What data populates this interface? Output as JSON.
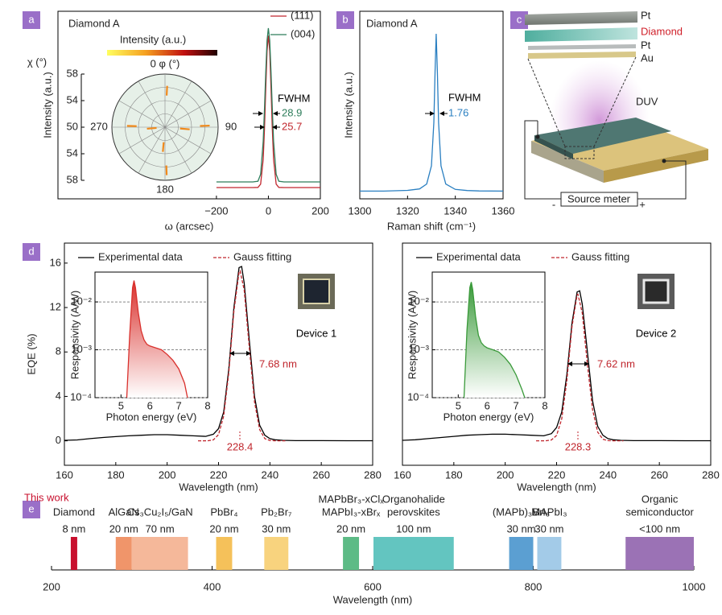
{
  "panel_labels": [
    "a",
    "b",
    "c",
    "d",
    "e"
  ],
  "diagram": {
    "layers": [
      "Pt",
      "Diamond",
      "Pt",
      "Au"
    ],
    "light": "DUV",
    "instrument": "Source meter",
    "terminals": [
      "-",
      "+"
    ]
  },
  "chart_data": [
    {
      "type": "line",
      "title": "Diamond A",
      "xlabel": "ω (arcsec)",
      "ylabel": "Intensity (a.u.)",
      "xlim": [
        -810,
        200
      ],
      "ylim": [
        0,
        1
      ],
      "xticks": [
        {
          "value": -200,
          "label": "−200"
        },
        0,
        200
      ],
      "legend": "upper right",
      "x": [
        -200,
        -150,
        -100,
        -60,
        -40,
        -30,
        -20,
        -15,
        -10,
        -5,
        0,
        5,
        10,
        15,
        20,
        30,
        40,
        60,
        100,
        150,
        200
      ],
      "series": [
        {
          "name": "(111)",
          "color": "#c0262d",
          "values": [
            0.06,
            0.06,
            0.06,
            0.06,
            0.061,
            0.078,
            0.211,
            0.374,
            0.591,
            0.789,
            0.87,
            0.789,
            0.591,
            0.374,
            0.211,
            0.078,
            0.061,
            0.06,
            0.06,
            0.06,
            0.06
          ]
        },
        {
          "name": "(004)",
          "color": "#2e7d5b",
          "values": [
            0.09,
            0.09,
            0.09,
            0.09,
            0.094,
            0.131,
            0.307,
            0.479,
            0.678,
            0.844,
            0.91,
            0.844,
            0.678,
            0.479,
            0.307,
            0.131,
            0.094,
            0.09,
            0.09,
            0.09,
            0.09
          ]
        }
      ],
      "annotations": [
        {
          "text": "FWHM",
          "color": "#000000"
        },
        {
          "text": "28.9",
          "color": "#2e7d5b"
        },
        {
          "text": "25.7",
          "color": "#c0262d"
        }
      ],
      "inset": {
        "type": "polar",
        "colorbar_label": "Intensity (a.u.)",
        "angle_label": "0 φ (°)",
        "angle_ticks": [
          90,
          180,
          270
        ],
        "radial_label": "χ (°)",
        "radial_ticks": [
          58,
          54,
          50,
          54,
          58
        ],
        "rlim": [
          50,
          58
        ],
        "color": "#f08a1c",
        "spots": {
          "phi": [
            3,
            88,
            178,
            272,
            265,
            95,
            185
          ],
          "chi": [
            55.5,
            56,
            56.5,
            55,
            52,
            53,
            53
          ]
        }
      }
    },
    {
      "type": "line",
      "title": "Diamond A",
      "xlabel": "Raman shift (cm⁻¹)",
      "ylabel": "Intensity (a.u.)",
      "xlim": [
        1300,
        1360
      ],
      "ylim": [
        0,
        1
      ],
      "xticks": [
        1300,
        1320,
        1340,
        1360
      ],
      "x": [
        1300,
        1310,
        1320,
        1325,
        1328,
        1330,
        1331,
        1331.5,
        1332,
        1332.5,
        1333,
        1334,
        1336,
        1340,
        1345,
        1350,
        1360
      ],
      "series": [
        {
          "color": "#2a7fc1",
          "values": [
            0.041,
            0.041,
            0.045,
            0.053,
            0.079,
            0.176,
            0.406,
            0.675,
            0.88,
            0.675,
            0.406,
            0.176,
            0.079,
            0.05,
            0.044,
            0.042,
            0.041
          ]
        }
      ],
      "annotations": [
        {
          "text": "FWHM",
          "color": "#000000"
        },
        {
          "text": "1.76",
          "color": "#2a7fc1"
        }
      ]
    },
    {
      "type": "line",
      "xlabel": "Wavelength (nm)",
      "ylabel": "EQE (%)",
      "legend": "upper left",
      "xlim": [
        160,
        280
      ],
      "xticks": [
        160,
        180,
        200,
        220,
        240,
        260,
        280
      ],
      "ylim": [
        -2.2,
        17.8
      ],
      "yticks": [
        0,
        4,
        8,
        12,
        16
      ],
      "series": [
        {
          "name": "Experimental data",
          "color": "#000000",
          "style": "solid",
          "x": [
            160,
            165,
            170,
            175,
            180,
            185,
            190,
            195,
            200,
            205,
            210,
            215,
            218,
            220,
            222,
            224,
            226,
            228,
            229,
            230,
            232,
            234,
            236,
            238,
            240,
            242,
            245,
            250,
            260,
            270,
            280
          ],
          "values": [
            0.05,
            0.08,
            0.2,
            0.3,
            0.38,
            0.45,
            0.5,
            0.55,
            0.55,
            0.5,
            0.45,
            0.4,
            0.6,
            1.1,
            2.6,
            6.5,
            12,
            15.6,
            15.7,
            14.2,
            9,
            4,
            1.4,
            0.5,
            0.2,
            0.1,
            0.05,
            0.02,
            0.02,
            0.01,
            0.01
          ]
        },
        {
          "name": "Gauss fitting",
          "color": "#c0262d",
          "style": "dashed",
          "x": [
            212,
            214,
            216,
            218,
            220,
            222,
            224,
            226,
            228,
            228.4,
            230,
            232,
            234,
            236,
            238,
            240,
            242,
            246
          ],
          "values": [
            0,
            0,
            0.01,
            0.09,
            0.56,
            2.23,
            6.16,
            11.67,
            15.19,
            15.3,
            13.57,
            8.32,
            3.5,
            1.01,
            0.2,
            0.03,
            0,
            0
          ]
        }
      ],
      "annotations": [
        {
          "text": "7.68 nm",
          "color": "#c0262d"
        },
        {
          "text": "228.4",
          "color": "#c0262d"
        },
        {
          "text": "Device 1",
          "color": "#000000"
        }
      ],
      "inset": {
        "type": "area",
        "xlabel": "Photon energy (eV)",
        "ylabel": "Responsivity (A/W)",
        "log_y": true,
        "grid": true,
        "color": "#d9302c",
        "xlim": [
          4.1,
          8
        ],
        "xticks": [
          5,
          6,
          7,
          8
        ],
        "ylim": [
          0.0001,
          0.042
        ],
        "yticks": [
          {
            "value": 0.0001,
            "label": "10⁻⁴"
          },
          {
            "value": 0.001,
            "label": "10⁻³"
          },
          {
            "value": 0.01,
            "label": "10⁻²"
          }
        ],
        "x": [
          5.2,
          5.3,
          5.4,
          5.45,
          5.5,
          5.6,
          5.7,
          5.8,
          5.9,
          6.0,
          6.2,
          6.4,
          6.6,
          6.8,
          7.0,
          7.2,
          7.3
        ],
        "values": [
          0.0001,
          0.002,
          0.02,
          0.028,
          0.02,
          0.006,
          0.0025,
          0.0016,
          0.0013,
          0.0012,
          0.0011,
          0.001,
          0.0008,
          0.0006,
          0.0004,
          0.0002,
          0.0001
        ]
      }
    },
    {
      "type": "line",
      "xlabel": "Wavelength (nm)",
      "legend": "upper left",
      "xlim": [
        160,
        280
      ],
      "xticks": [
        160,
        180,
        200,
        220,
        240,
        260,
        280
      ],
      "ylim": [
        -2.2,
        17.8
      ],
      "series": [
        {
          "name": "Experimental data",
          "color": "#000000",
          "style": "solid",
          "x": [
            160,
            165,
            170,
            175,
            180,
            185,
            190,
            195,
            200,
            205,
            210,
            215,
            218,
            220,
            222,
            224,
            226,
            228,
            229,
            230,
            232,
            234,
            236,
            238,
            240,
            242,
            245,
            250,
            260,
            270,
            280
          ],
          "values": [
            0.05,
            0.1,
            0.2,
            0.3,
            0.4,
            0.5,
            0.55,
            0.6,
            0.6,
            0.55,
            0.5,
            0.45,
            0.65,
            1.2,
            2.6,
            6,
            10.6,
            13.4,
            13.5,
            12.3,
            8,
            3.6,
            1.3,
            0.5,
            0.2,
            0.1,
            0.05,
            0.02,
            0.02,
            0.01,
            0.01
          ]
        },
        {
          "name": "Gauss fitting",
          "color": "#c0262d",
          "style": "dashed",
          "x": [
            212,
            214,
            216,
            218,
            220,
            222,
            224,
            226,
            228,
            228.3,
            230,
            232,
            234,
            236,
            238,
            240,
            242,
            246
          ],
          "values": [
            0,
            0,
            0.01,
            0.08,
            0.49,
            1.98,
            5.46,
            10.25,
            13.14,
            13.2,
            11.5,
            6.86,
            2.8,
            0.78,
            0.15,
            0.02,
            0,
            0
          ]
        }
      ],
      "annotations": [
        {
          "text": "7.62 nm",
          "color": "#c0262d"
        },
        {
          "text": "228.3",
          "color": "#c0262d"
        },
        {
          "text": "Device 2",
          "color": "#000000"
        }
      ],
      "inset": {
        "type": "area",
        "xlabel": "Photon energy (eV)",
        "ylabel": "Responsivity (A/W)",
        "log_y": true,
        "grid": true,
        "color": "#3a9a3a",
        "xlim": [
          4.1,
          8
        ],
        "xticks": [
          5,
          6,
          7,
          8
        ],
        "ylim": [
          0.0001,
          0.042
        ],
        "yticks": [
          {
            "value": 0.0001,
            "label": "10⁻⁴"
          },
          {
            "value": 0.001,
            "label": "10⁻³"
          },
          {
            "value": 0.01,
            "label": "10⁻²"
          }
        ],
        "x": [
          5.2,
          5.3,
          5.4,
          5.45,
          5.5,
          5.6,
          5.7,
          5.8,
          5.9,
          6.0,
          6.2,
          6.4,
          6.6,
          6.8,
          7.0,
          7.2,
          7.3
        ],
        "values": [
          0.0001,
          0.0025,
          0.02,
          0.026,
          0.018,
          0.005,
          0.002,
          0.0014,
          0.0012,
          0.0011,
          0.001,
          0.0009,
          0.0007,
          0.0005,
          0.0003,
          0.00015,
          0.0001
        ]
      }
    },
    {
      "type": "range_bar",
      "xlabel": "Wavelength (nm)",
      "xlim": [
        200,
        1000
      ],
      "xticks": [
        200,
        400,
        600,
        800,
        1000
      ],
      "highlight": "This work",
      "highlight_color": "#c8102e",
      "items": [
        {
          "name": [
            "Diamond"
          ],
          "width": "8 nm",
          "range": [
            224,
            232
          ],
          "color": "#c8102e"
        },
        {
          "name": [
            "AlGaN"
          ],
          "width": "20 nm",
          "range": [
            280,
            300
          ],
          "color": "#f0956a"
        },
        {
          "name": [
            "Cs₃Cu₂I₅/GaN"
          ],
          "width": "70 nm",
          "range": [
            300,
            370
          ],
          "color": "#f5b89a"
        },
        {
          "name": [
            "PbBr₄"
          ],
          "width": "20 nm",
          "range": [
            405,
            425
          ],
          "color": "#f5c15a"
        },
        {
          "name": [
            "Pb₂Br₇"
          ],
          "width": "30 nm",
          "range": [
            465,
            495
          ],
          "color": "#f8d37e"
        },
        {
          "name": [
            "MAPbBr₃-xClₓ",
            "MAPbI₃-xBrₓ"
          ],
          "width": "20 nm",
          "range": [
            563,
            583
          ],
          "color": "#5dbb86"
        },
        {
          "name": [
            "Organohalide",
            "perovskites"
          ],
          "width": "100 nm",
          "range": [
            601,
            701
          ],
          "color": "#63c5c0"
        },
        {
          "name": [
            "(MAPb)₃BrI₈"
          ],
          "width": "30 nm",
          "range": [
            770,
            800
          ],
          "color": "#5b9fd2"
        },
        {
          "name": [
            "MAPbI₃"
          ],
          "width": "30 nm",
          "range": [
            805,
            835
          ],
          "color": "#a3cbe8"
        },
        {
          "name": [
            "Organic",
            "semiconductor"
          ],
          "width": "<100 nm",
          "range": [
            915,
            1000
          ],
          "color": "#9b72b5"
        }
      ]
    }
  ]
}
